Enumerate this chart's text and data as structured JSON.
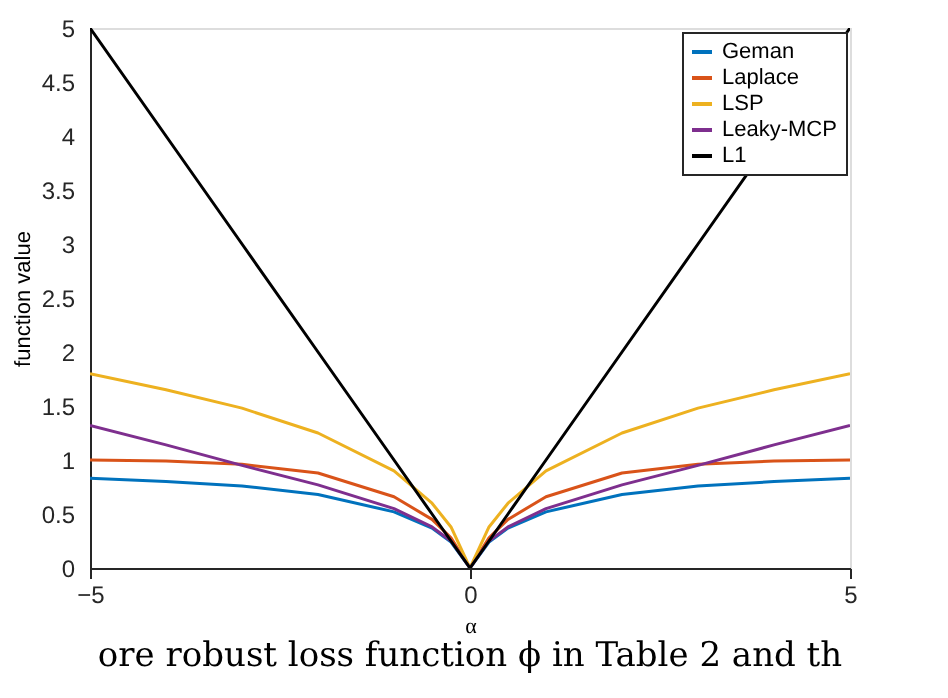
{
  "chart_data": {
    "type": "line",
    "xlabel": "α",
    "ylabel": "function value",
    "x": [
      -5,
      -4,
      -3,
      -2,
      -1,
      -0.5,
      -0.25,
      0,
      0.25,
      0.5,
      1,
      2,
      3,
      4,
      5
    ],
    "series": [
      {
        "name": "Geman",
        "color": "#0072bd",
        "values": [
          0.83,
          0.8,
          0.76,
          0.68,
          0.52,
          0.37,
          0.24,
          0,
          0.24,
          0.37,
          0.52,
          0.68,
          0.76,
          0.8,
          0.83
        ]
      },
      {
        "name": "Laplace",
        "color": "#d95319",
        "values": [
          1.0,
          0.99,
          0.96,
          0.88,
          0.66,
          0.45,
          0.28,
          0,
          0.28,
          0.45,
          0.66,
          0.88,
          0.96,
          0.99,
          1.0
        ]
      },
      {
        "name": "LSP",
        "color": "#edb120",
        "values": [
          1.8,
          1.65,
          1.48,
          1.25,
          0.9,
          0.6,
          0.38,
          0,
          0.38,
          0.6,
          0.9,
          1.25,
          1.48,
          1.65,
          1.8
        ]
      },
      {
        "name": "Leaky-MCP",
        "color": "#7e2f8e",
        "values": [
          1.32,
          1.14,
          0.95,
          0.77,
          0.55,
          0.38,
          0.25,
          0,
          0.25,
          0.38,
          0.55,
          0.77,
          0.95,
          1.14,
          1.32
        ]
      },
      {
        "name": "L1",
        "color": "#000000",
        "values": [
          5,
          4,
          3,
          2,
          1,
          0.5,
          0.25,
          0,
          0.25,
          0.5,
          1,
          2,
          3,
          null,
          5
        ]
      }
    ],
    "xlim": [
      -5,
      5
    ],
    "xticks": [
      -5,
      0,
      5
    ],
    "ylim": [
      0,
      5
    ],
    "yticks": [
      0,
      0.5,
      1,
      1.5,
      2,
      2.5,
      3,
      3.5,
      4,
      4.5,
      5
    ],
    "grid": false,
    "legend": "top right",
    "marker": "none",
    "line_style": "solid",
    "annotations": [
      "ore robust loss function ϕ in Table 2 and th"
    ]
  }
}
